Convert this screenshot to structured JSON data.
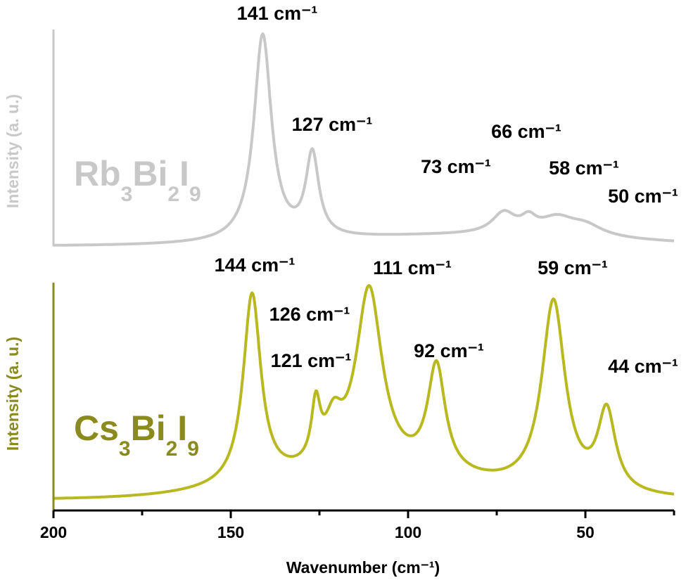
{
  "chart_data": {
    "type": "line",
    "xlabel": "Wavenumber (cm⁻¹)",
    "xlim": [
      200,
      25
    ],
    "x_ticks": [
      "200",
      "150",
      "100",
      "50"
    ],
    "panels": [
      {
        "name": "Rb3Bi2I9",
        "label": {
          "pre": "Rb",
          "s1": "3",
          "mid": "Bi",
          "s2": "2",
          "post": "I",
          "s3": "9"
        },
        "ylabel": "Intensity (a. u.)",
        "color": "#c8c8c8",
        "peaks": [
          {
            "label": "141 cm⁻¹",
            "x": 141,
            "width": 3.0,
            "height": 1.0
          },
          {
            "label": "127 cm⁻¹",
            "x": 127,
            "width": 2.2,
            "height": 0.4
          },
          {
            "label": "73 cm⁻¹",
            "x": 73,
            "width": 4.0,
            "height": 0.1
          },
          {
            "label": "66 cm⁻¹",
            "x": 66,
            "width": 2.5,
            "height": 0.06
          },
          {
            "label": "58 cm⁻¹",
            "x": 58,
            "width": 6.0,
            "height": 0.08
          },
          {
            "label": "50 cm⁻¹",
            "x": 50,
            "width": 6.0,
            "height": 0.05
          }
        ],
        "background": {
          "center": 82,
          "width": 40,
          "height": 0.05
        }
      },
      {
        "name": "Cs3Bi2I9",
        "label": {
          "pre": "Cs",
          "s1": "3",
          "mid": "Bi",
          "s2": "2",
          "post": "I",
          "s3": "9"
        },
        "ylabel": "Intensity (a. u.)",
        "color": "#b8b820",
        "ylabel_color": "#8a8a1f",
        "peaks": [
          {
            "label": "144 cm⁻¹",
            "x": 144,
            "width": 3.0,
            "height": 1.0
          },
          {
            "label": "126 cm⁻¹",
            "x": 126,
            "width": 1.5,
            "height": 0.3
          },
          {
            "label": "121 cm⁻¹",
            "x": 121,
            "width": 3.0,
            "height": 0.21
          },
          {
            "label": "111 cm⁻¹",
            "x": 111,
            "width": 4.5,
            "height": 0.96
          },
          {
            "label": "92 cm⁻¹",
            "x": 92,
            "width": 3.0,
            "height": 0.56
          },
          {
            "label": "59 cm⁻¹",
            "x": 59,
            "width": 4.0,
            "height": 1.0
          },
          {
            "label": "44 cm⁻¹",
            "x": 44,
            "width": 3.0,
            "height": 0.42
          }
        ],
        "background": {
          "center": 110,
          "width": 30,
          "height": 0.12
        }
      }
    ]
  }
}
